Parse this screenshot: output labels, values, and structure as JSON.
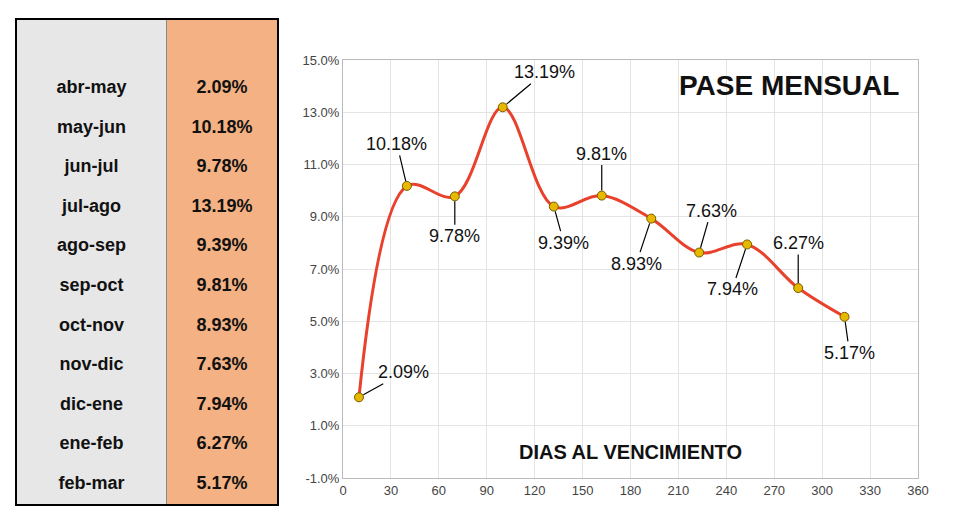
{
  "table": {
    "rows": [
      [
        "abr-may",
        "2.09%"
      ],
      [
        "may-jun",
        "10.18%"
      ],
      [
        "jun-jul",
        "9.78%"
      ],
      [
        "jul-ago",
        "13.19%"
      ],
      [
        "ago-sep",
        "9.39%"
      ],
      [
        "sep-oct",
        "9.81%"
      ],
      [
        "oct-nov",
        "8.93%"
      ],
      [
        "nov-dic",
        "7.63%"
      ],
      [
        "dic-ene",
        "7.94%"
      ],
      [
        "ene-feb",
        "6.27%"
      ],
      [
        "feb-mar",
        "5.17%"
      ]
    ]
  },
  "chart_data": {
    "type": "line",
    "title": "PASE MENSUAL",
    "x_label": "DIAS AL VENCIMIENTO",
    "x": [
      10,
      40,
      70,
      100,
      132,
      162,
      193,
      223,
      253,
      285,
      314
    ],
    "values": [
      2.09,
      10.18,
      9.78,
      13.19,
      9.39,
      9.81,
      8.93,
      7.63,
      7.94,
      6.27,
      5.17
    ],
    "value_labels": [
      "2.09%",
      "10.18%",
      "9.78%",
      "13.19%",
      "9.39%",
      "9.81%",
      "8.93%",
      "7.63%",
      "7.94%",
      "6.27%",
      "5.17%"
    ],
    "color": "#e8412c",
    "marker": "circle",
    "line_style": "smooth",
    "data_labels": true,
    "grid": true,
    "xlim": [
      0,
      360
    ],
    "xticks": [
      0,
      30,
      60,
      90,
      120,
      150,
      180,
      210,
      240,
      270,
      300,
      330,
      360
    ],
    "ylim": [
      -1,
      15
    ],
    "yticks": [
      {
        "value": -1,
        "label": "-1.0%"
      },
      {
        "value": 1,
        "label": "1.0%"
      },
      {
        "value": 3,
        "label": "3.0%"
      },
      {
        "value": 5,
        "label": "5.0%"
      },
      {
        "value": 7,
        "label": "7.0%"
      },
      {
        "value": 9,
        "label": "9.0%"
      },
      {
        "value": 11,
        "label": "11.0%"
      },
      {
        "value": 13,
        "label": "13.0%"
      },
      {
        "value": 15,
        "label": "15.0%"
      }
    ]
  }
}
